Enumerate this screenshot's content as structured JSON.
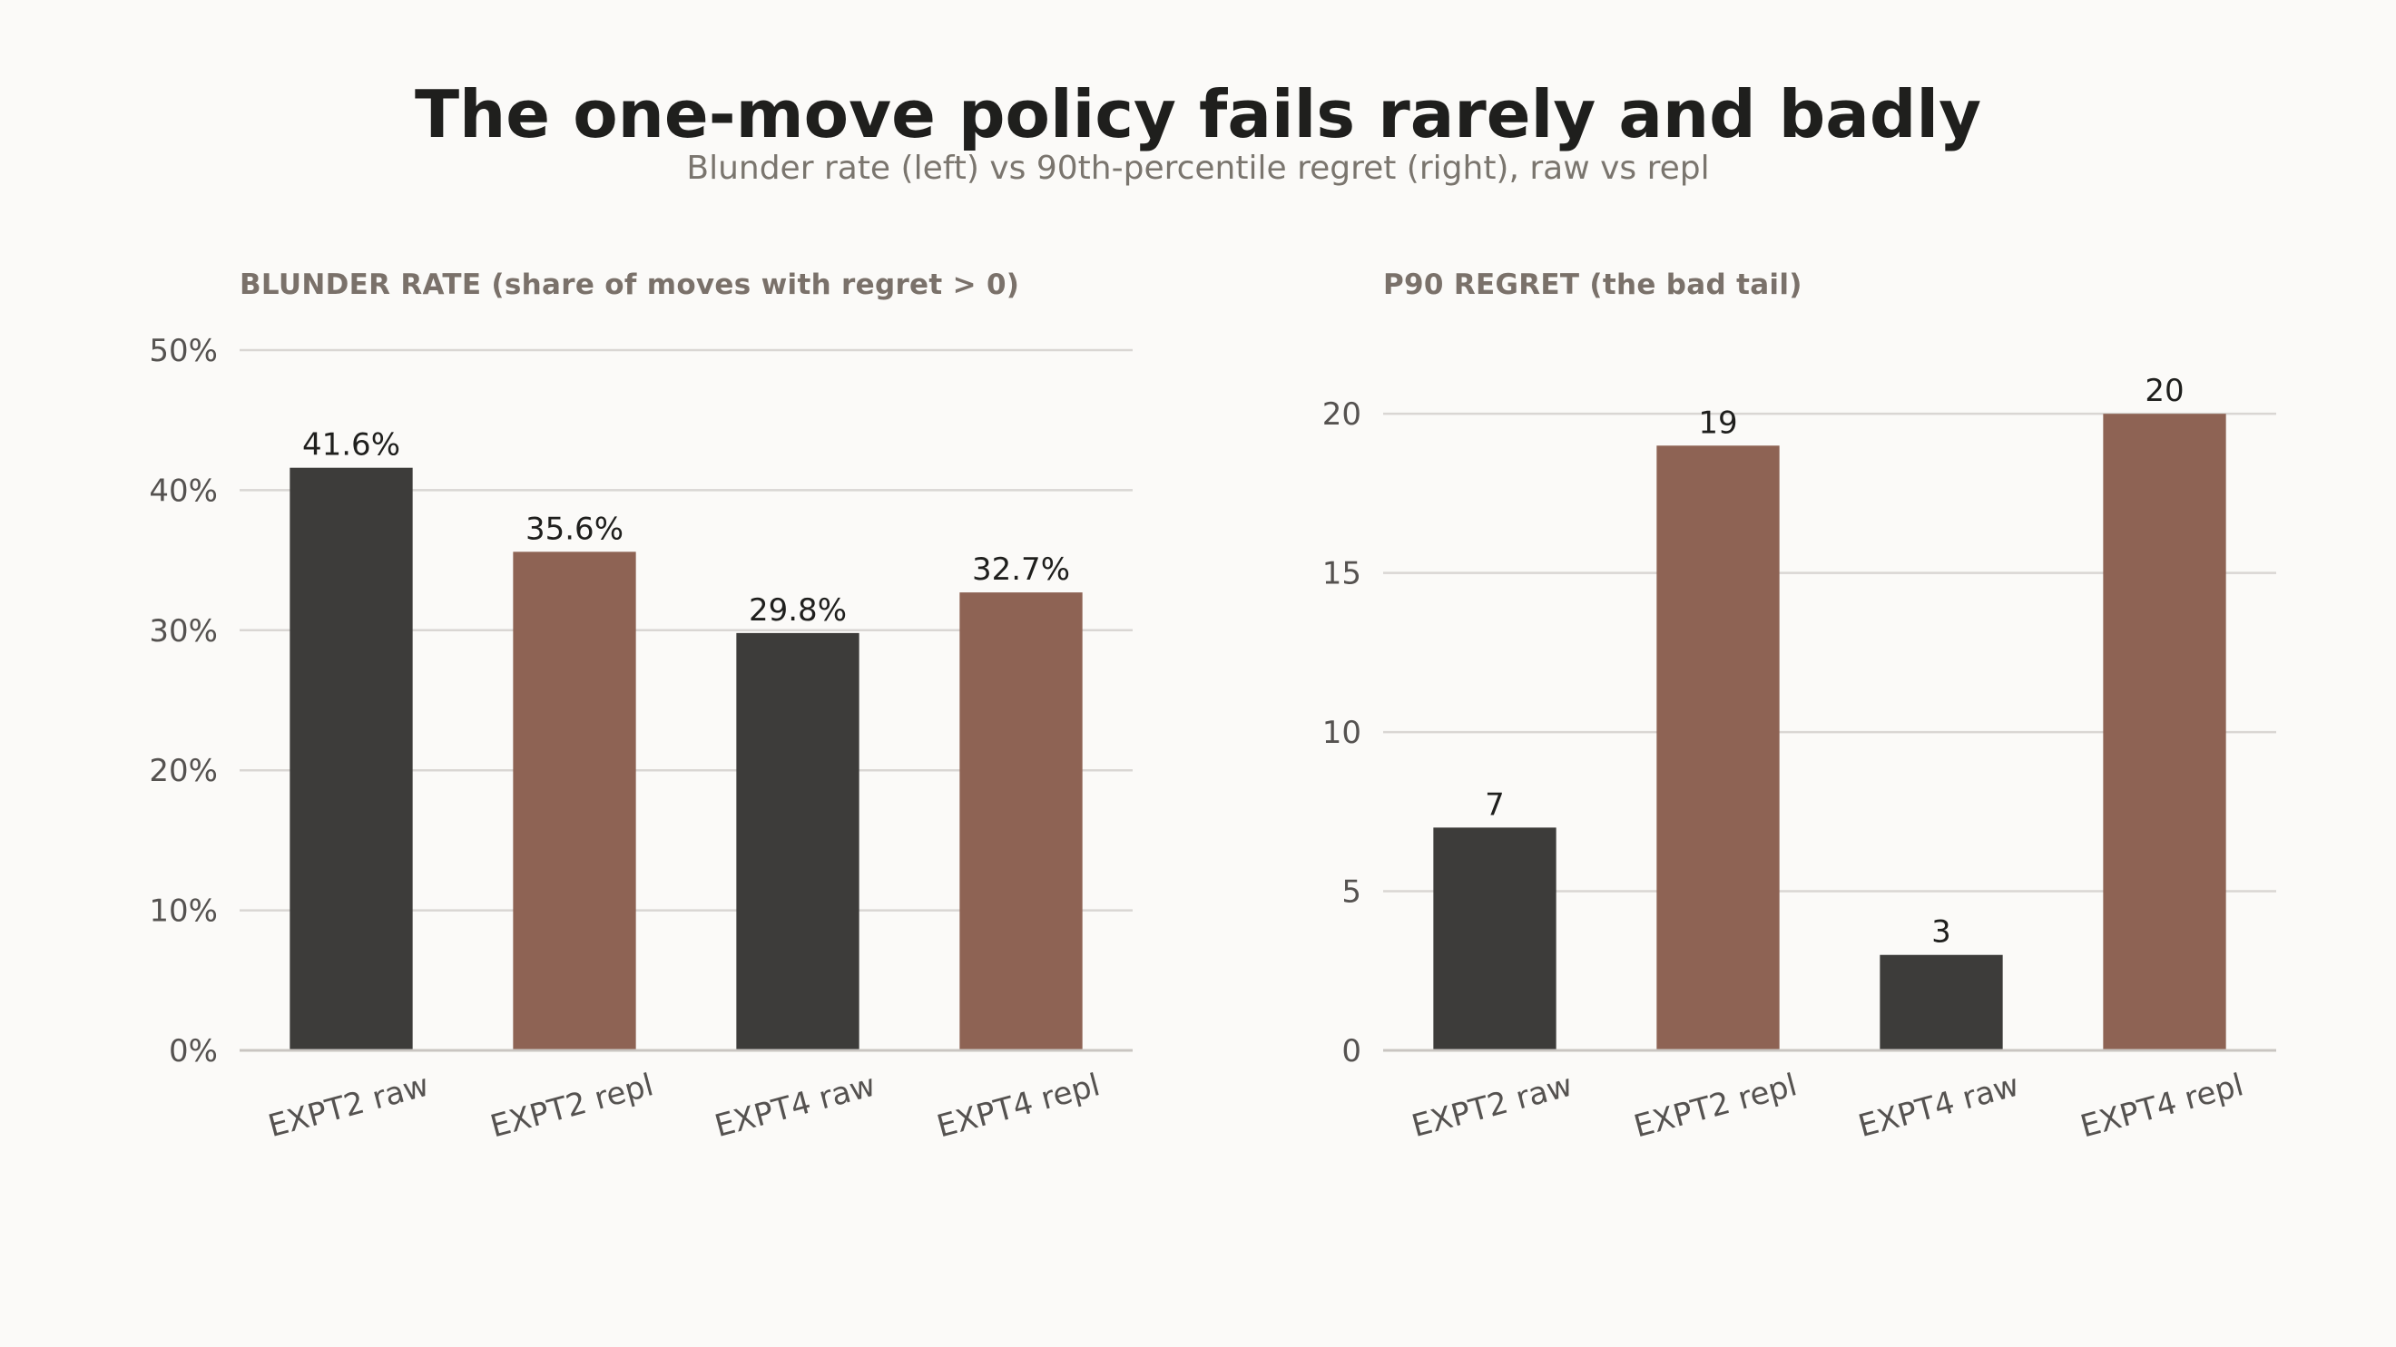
{
  "title": "The one-move policy fails rarely and badly",
  "subtitle": "Blunder rate (left) vs 90th-percentile regret (right), raw vs repl",
  "colors": {
    "raw": "#3d3c3a",
    "repl": "#8e6354",
    "grid": "#d9d6d3",
    "axis": "#c9c5c1"
  },
  "chart_data": [
    {
      "type": "bar",
      "title": "BLUNDER RATE (share of moves with regret > 0)",
      "categories": [
        "EXPT2 raw",
        "EXPT2 repl",
        "EXPT4 raw",
        "EXPT4 repl"
      ],
      "values": [
        41.6,
        35.6,
        29.8,
        32.7
      ],
      "data_labels": [
        "41.6%",
        "35.6%",
        "29.8%",
        "32.7%"
      ],
      "series_kind": [
        "raw",
        "repl",
        "raw",
        "repl"
      ],
      "ylim": [
        0,
        50
      ],
      "yticks": [
        0,
        10,
        20,
        30,
        40,
        50
      ],
      "ytick_labels": [
        "0%",
        "10%",
        "20%",
        "30%",
        "40%",
        "50%"
      ],
      "grid": true
    },
    {
      "type": "bar",
      "title": "P90 REGRET (the bad tail)",
      "categories": [
        "EXPT2 raw",
        "EXPT2 repl",
        "EXPT4 raw",
        "EXPT4 repl"
      ],
      "values": [
        7,
        19,
        3,
        20
      ],
      "data_labels": [
        "7",
        "19",
        "3",
        "20"
      ],
      "series_kind": [
        "raw",
        "repl",
        "raw",
        "repl"
      ],
      "ylim": [
        0,
        22
      ],
      "yticks": [
        0,
        5,
        10,
        15,
        20
      ],
      "ytick_labels": [
        "0",
        "5",
        "10",
        "15",
        "20"
      ],
      "grid": true
    }
  ]
}
